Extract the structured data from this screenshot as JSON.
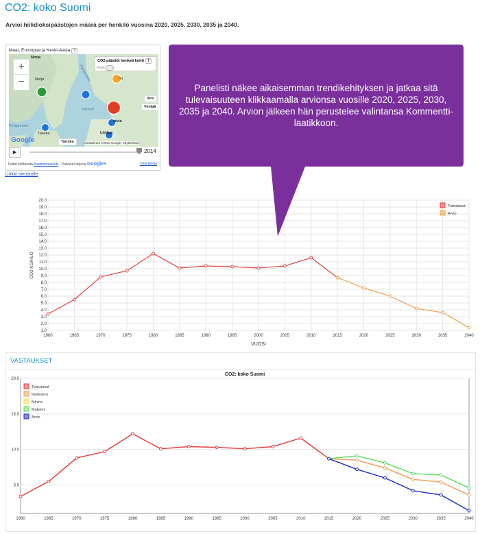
{
  "page": {
    "title": "CO2: koko Suomi",
    "subtitle": "Arvioi hiilidioksipäästöjen määrä per henkilö vuosina 2020, 2025, 2030, 2035 ja 2040.",
    "site_link": "Linkki sivustolle"
  },
  "map_widget": {
    "region_label": "Maat, Eurooppa ja Keski-Aasia",
    "help": "?",
    "toggle_title": "CO2-päästöt henkeä kohti",
    "toggle_state": "POIS",
    "zoom_in": "+",
    "zoom_out": "−",
    "labels": {
      "norway": "Norja",
      "top_country": "Norja",
      "sweden": "Ruotsi",
      "finland_partial": "mi",
      "estonia_partial": "Viro",
      "russia": "Venäjä",
      "latvia_partial": "atvia",
      "lithuania_partial": "Liettua",
      "denmark_partial": "Tanska",
      "denmark_box": "Tanska",
      "sea": "Itämeri",
      "kattegat": "Pohjanlahti",
      "north_sea": "Pohjanmeri"
    },
    "google": "Google",
    "map_credit": "Karttatiedot ©2019 Google",
    "terms": "Käyttöehdot",
    "year": "2014",
    "footer_source": "Tiedot kohteesta",
    "footer_source_link": "Maailmanpankki",
    "footer_provider": "- Palvelun tarjoaa",
    "footer_google": "Google+",
    "footer_more": "Tutki tietoja"
  },
  "callout": {
    "text": "Panelisti näkee aikaisemman trendikehityksen ja jatkaa sitä tulevaisuuteen klikkaamalla arvionsa vuosille 2020, 2025, 2030, 2035 ja 2040. Arvion jälkeen hän perustelee valintansa Kommentti-laatikkoon.",
    "color": "#7a2f9d"
  },
  "answers": {
    "title": "VASTAUKSET"
  },
  "chart_data": [
    {
      "type": "line",
      "title": "",
      "xlabel": "VUOSI",
      "ylabel": "CO2 KG/HLÖ",
      "ylim": [
        1.0,
        20.0
      ],
      "yticks": [
        1.0,
        2.0,
        3.0,
        4.0,
        5.0,
        6.0,
        7.0,
        8.0,
        9.0,
        10.0,
        11.0,
        12.0,
        13.0,
        14.0,
        15.0,
        16.0,
        17.0,
        18.0,
        19.0,
        20.0
      ],
      "categories": [
        "1960",
        "1965",
        "1970",
        "1975",
        "1980",
        "1985",
        "1990",
        "1995",
        "2000",
        "2005",
        "2010",
        "2015",
        "2020",
        "2025",
        "2030",
        "2035",
        "2040"
      ],
      "series": [
        {
          "name": "Toteutunut",
          "color": "#e84040",
          "values": [
            3.4,
            5.5,
            8.8,
            9.7,
            12.2,
            10.1,
            10.4,
            10.3,
            10.1,
            10.4,
            11.6,
            8.7,
            null,
            null,
            null,
            null,
            null
          ]
        },
        {
          "name": "Arvio",
          "color": "#f0a050",
          "values": [
            null,
            null,
            null,
            null,
            null,
            null,
            null,
            null,
            null,
            null,
            null,
            8.7,
            7.2,
            6.0,
            4.2,
            3.6,
            1.4
          ]
        }
      ],
      "legend": "top-right"
    },
    {
      "type": "line",
      "title": "CO2: koko Suomi",
      "xlabel": "",
      "ylabel": "",
      "ylim": [
        1.0,
        20.0
      ],
      "yticks": [
        5.0,
        10.0,
        15.0,
        20.0
      ],
      "categories": [
        "1960",
        "1965",
        "1970",
        "1975",
        "1980",
        "1985",
        "1990",
        "1995",
        "2000",
        "2005",
        "2010",
        "2015",
        "2020",
        "2025",
        "2030",
        "2035",
        "2040"
      ],
      "series": [
        {
          "name": "Toteutunut",
          "color": "#e84040",
          "values": [
            3.4,
            5.5,
            8.8,
            9.7,
            12.2,
            10.1,
            10.4,
            10.3,
            10.1,
            10.4,
            11.6,
            8.7,
            null,
            null,
            null,
            null,
            null
          ]
        },
        {
          "name": "Keskiarvo",
          "color": "#f0a060",
          "values": [
            null,
            null,
            null,
            null,
            null,
            null,
            null,
            null,
            null,
            null,
            null,
            8.7,
            8.5,
            7.4,
            5.8,
            5.4,
            3.6
          ]
        },
        {
          "name": "Minimi",
          "color": "#f5e060",
          "values": [
            null,
            null,
            null,
            null,
            null,
            null,
            null,
            null,
            null,
            null,
            null,
            null,
            null,
            null,
            null,
            null,
            null
          ]
        },
        {
          "name": "Maksimi",
          "color": "#60e060",
          "values": [
            null,
            null,
            null,
            null,
            null,
            null,
            null,
            null,
            null,
            null,
            null,
            8.7,
            9.1,
            8.1,
            6.6,
            6.4,
            4.6
          ]
        },
        {
          "name": "Arvio",
          "color": "#2030d0",
          "values": [
            null,
            null,
            null,
            null,
            null,
            null,
            null,
            null,
            null,
            null,
            null,
            8.7,
            7.2,
            6.0,
            4.2,
            3.6,
            1.4
          ]
        }
      ],
      "legend": "top-left"
    }
  ]
}
